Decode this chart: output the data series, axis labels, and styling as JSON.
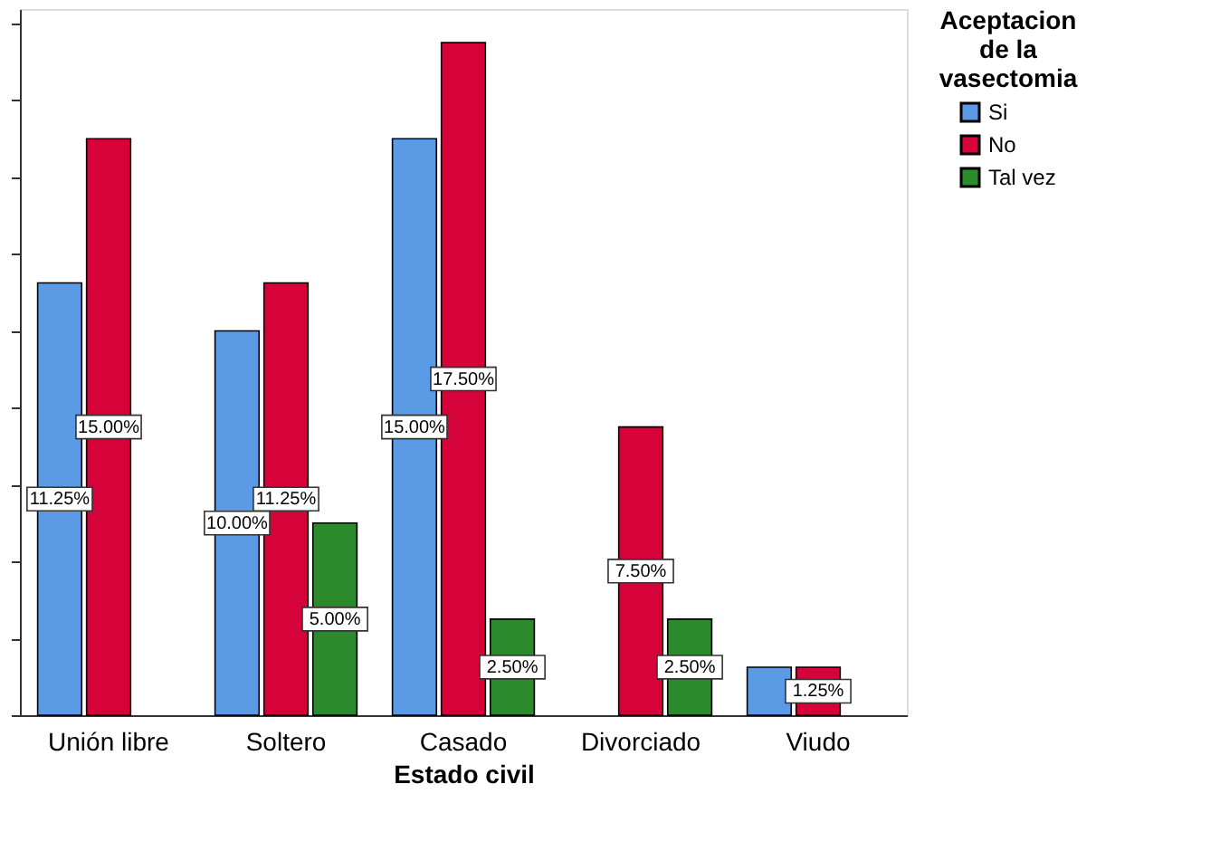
{
  "chart_data": {
    "type": "bar",
    "xlabel": "Estado civil",
    "legend_title": "Aceptacion de la vasectomia",
    "legend": "top right",
    "grid": false,
    "categories": [
      "Unión libre",
      "Soltero",
      "Casado",
      "Divorciado",
      "Viudo"
    ],
    "series": [
      {
        "name": "Si",
        "color": "#5b9be6",
        "values": [
          11.25,
          10.0,
          15.0,
          null,
          1.25
        ],
        "value_labels": [
          "11.25%",
          "10.00%",
          "15.00%",
          null,
          null
        ]
      },
      {
        "name": "No",
        "color": "#d5033a",
        "values": [
          15.0,
          11.25,
          17.5,
          7.5,
          1.25
        ],
        "value_labels": [
          "15.00%",
          "11.25%",
          "17.50%",
          "7.50%",
          "1.25%"
        ]
      },
      {
        "name": "Tal vez",
        "color": "#2b8a2b",
        "values": [
          null,
          5.0,
          2.5,
          2.5,
          null
        ],
        "value_labels": [
          null,
          "5.00%",
          "2.50%",
          "2.50%",
          null
        ]
      }
    ]
  }
}
